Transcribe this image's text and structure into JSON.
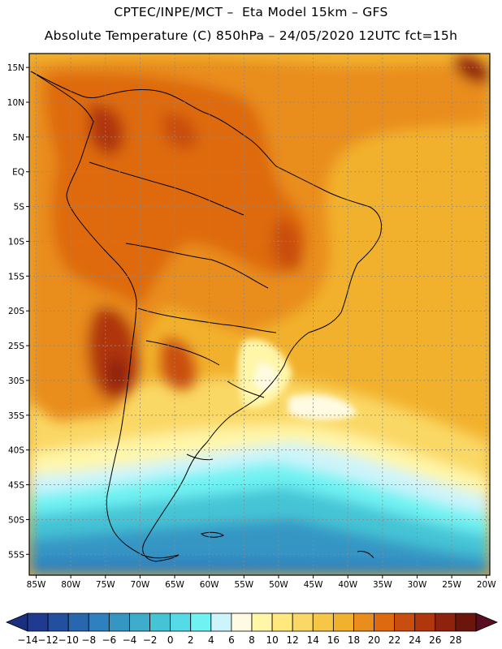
{
  "header": {
    "title_line1": "CPTEC/INPE/MCT –  Eta Model 15km – GFS",
    "title_line2": "Absolute Temperature (C) 850hPa – 24/05/2020 12UTC fct=15h"
  },
  "map": {
    "lon_range": [
      -86,
      -19.5
    ],
    "lat_range": [
      -58,
      17
    ],
    "lon_ticks": [
      {
        "value": -85,
        "label": "85W"
      },
      {
        "value": -80,
        "label": "80W"
      },
      {
        "value": -75,
        "label": "75W"
      },
      {
        "value": -70,
        "label": "70W"
      },
      {
        "value": -65,
        "label": "65W"
      },
      {
        "value": -60,
        "label": "60W"
      },
      {
        "value": -55,
        "label": "55W"
      },
      {
        "value": -50,
        "label": "50W"
      },
      {
        "value": -45,
        "label": "45W"
      },
      {
        "value": -40,
        "label": "40W"
      },
      {
        "value": -35,
        "label": "35W"
      },
      {
        "value": -30,
        "label": "30W"
      },
      {
        "value": -25,
        "label": "25W"
      },
      {
        "value": -20,
        "label": "20W"
      }
    ],
    "lat_ticks": [
      {
        "value": 15,
        "label": "15N"
      },
      {
        "value": 10,
        "label": "10N"
      },
      {
        "value": 5,
        "label": "5N"
      },
      {
        "value": 0,
        "label": "EQ"
      },
      {
        "value": -5,
        "label": "5S"
      },
      {
        "value": -10,
        "label": "10S"
      },
      {
        "value": -15,
        "label": "15S"
      },
      {
        "value": -20,
        "label": "20S"
      },
      {
        "value": -25,
        "label": "25S"
      },
      {
        "value": -30,
        "label": "30S"
      },
      {
        "value": -35,
        "label": "35S"
      },
      {
        "value": -40,
        "label": "40S"
      },
      {
        "value": -45,
        "label": "45S"
      },
      {
        "value": -50,
        "label": "50S"
      },
      {
        "value": -55,
        "label": "55S"
      }
    ]
  },
  "colorbar": {
    "labels": [
      "-14",
      "-12",
      "-10",
      "-8",
      "-6",
      "-4",
      "-2",
      "0",
      "2",
      "4",
      "6",
      "8",
      "10",
      "12",
      "14",
      "16",
      "18",
      "20",
      "22",
      "24",
      "26",
      "28"
    ],
    "colors": [
      "#1f3a8f",
      "#23509e",
      "#2867ad",
      "#2e80be",
      "#3596c4",
      "#3dadcb",
      "#45c4d6",
      "#55dbe5",
      "#6ff2f2",
      "#cdf4fb",
      "#fffbe2",
      "#fff6a8",
      "#ffe97f",
      "#fad865",
      "#f6c648",
      "#f2b12d",
      "#e98d1c",
      "#de6a10",
      "#c94d0f",
      "#b0360e",
      "#8f220f",
      "#6b160c"
    ],
    "low_color": "#1a2f80",
    "high_color": "#5a0d1f"
  },
  "colors": {
    "warmest": "#5a0d1f",
    "coldest": "#1a2f80"
  }
}
